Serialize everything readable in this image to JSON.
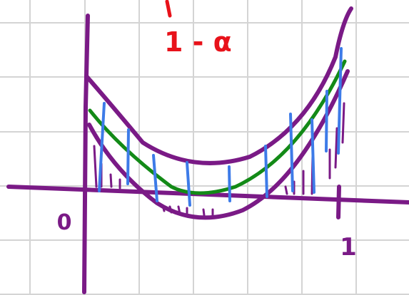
{
  "labels": {
    "confidence": "1 - α",
    "origin": "0",
    "x_end": "1"
  }
}
